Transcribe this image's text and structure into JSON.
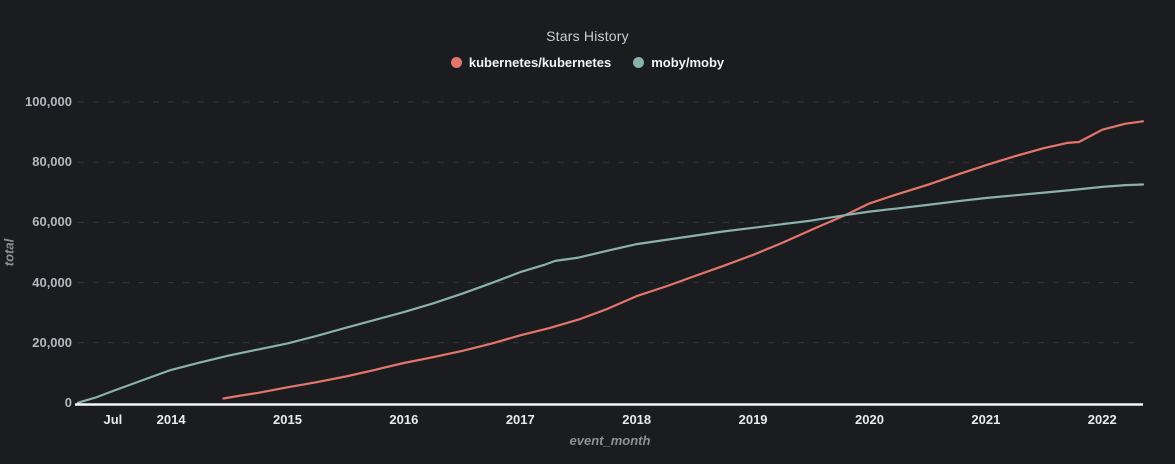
{
  "title": "Stars History",
  "colors": {
    "background": "#1b1c1f",
    "axis_line": "#f5f6f7",
    "grid": "#36373c",
    "y_tick_label": "#b4b8bf",
    "x_tick_label": "#e8eaed",
    "axis_title": "#8d9097",
    "title_text": "#c9cdd4",
    "legend_text": "#f2f3f5",
    "kubernetes_series": "#e4756b",
    "moby_series": "#8ab1ae"
  },
  "legend": {
    "items": [
      {
        "label": "kubernetes/kubernetes",
        "color": "#e4756b"
      },
      {
        "label": "moby/moby",
        "color": "#8ab1ae"
      }
    ]
  },
  "chart_data": {
    "type": "line",
    "title": "Stars History",
    "xlabel": "event_month",
    "ylabel": "total",
    "x_unit": "decimal_year",
    "xlim": [
      2013.2,
      2022.35
    ],
    "ylim": [
      0,
      100000
    ],
    "grid": "horizontal-dashed",
    "legend_position": "top-center",
    "x_ticks": [
      {
        "x": 2013.5,
        "label": "Jul"
      },
      {
        "x": 2014,
        "label": "2014"
      },
      {
        "x": 2015,
        "label": "2015"
      },
      {
        "x": 2016,
        "label": "2016"
      },
      {
        "x": 2017,
        "label": "2017"
      },
      {
        "x": 2018,
        "label": "2018"
      },
      {
        "x": 2019,
        "label": "2019"
      },
      {
        "x": 2020,
        "label": "2020"
      },
      {
        "x": 2021,
        "label": "2021"
      },
      {
        "x": 2022,
        "label": "2022"
      }
    ],
    "y_ticks": [
      {
        "y": 0,
        "label": "0"
      },
      {
        "y": 20000,
        "label": "20,000"
      },
      {
        "y": 40000,
        "label": "40,000"
      },
      {
        "y": 60000,
        "label": "60,000"
      },
      {
        "y": 80000,
        "label": "80,000"
      },
      {
        "y": 100000,
        "label": "100,000"
      }
    ],
    "series": [
      {
        "name": "kubernetes/kubernetes",
        "color": "#e4756b",
        "points": [
          [
            2014.45,
            1500
          ],
          [
            2014.6,
            2500
          ],
          [
            2014.75,
            3400
          ],
          [
            2015.0,
            5200
          ],
          [
            2015.25,
            6900
          ],
          [
            2015.5,
            8800
          ],
          [
            2015.75,
            11000
          ],
          [
            2016.0,
            13300
          ],
          [
            2016.25,
            15200
          ],
          [
            2016.5,
            17300
          ],
          [
            2016.75,
            19700
          ],
          [
            2017.0,
            22500
          ],
          [
            2017.25,
            24900
          ],
          [
            2017.5,
            27700
          ],
          [
            2017.75,
            31300
          ],
          [
            2018.0,
            35500
          ],
          [
            2018.25,
            38700
          ],
          [
            2018.5,
            42200
          ],
          [
            2018.75,
            45600
          ],
          [
            2019.0,
            49200
          ],
          [
            2019.25,
            53200
          ],
          [
            2019.5,
            57500
          ],
          [
            2019.79,
            62400
          ],
          [
            2020.0,
            66300
          ],
          [
            2020.25,
            69500
          ],
          [
            2020.5,
            72500
          ],
          [
            2020.75,
            75800
          ],
          [
            2021.0,
            79000
          ],
          [
            2021.25,
            82000
          ],
          [
            2021.5,
            84700
          ],
          [
            2021.7,
            86400
          ],
          [
            2021.8,
            86700
          ],
          [
            2022.0,
            90800
          ],
          [
            2022.2,
            92800
          ],
          [
            2022.35,
            93600
          ]
        ]
      },
      {
        "name": "moby/moby",
        "color": "#8ab1ae",
        "points": [
          [
            2013.2,
            100
          ],
          [
            2013.35,
            1800
          ],
          [
            2013.5,
            4000
          ],
          [
            2013.75,
            7500
          ],
          [
            2014.0,
            11000
          ],
          [
            2014.25,
            13500
          ],
          [
            2014.5,
            15800
          ],
          [
            2014.75,
            17800
          ],
          [
            2015.0,
            19800
          ],
          [
            2015.25,
            22300
          ],
          [
            2015.5,
            25000
          ],
          [
            2015.75,
            27600
          ],
          [
            2016.0,
            30200
          ],
          [
            2016.25,
            33100
          ],
          [
            2016.5,
            36300
          ],
          [
            2016.75,
            39800
          ],
          [
            2017.0,
            43500
          ],
          [
            2017.2,
            45800
          ],
          [
            2017.3,
            47200
          ],
          [
            2017.5,
            48300
          ],
          [
            2017.75,
            50600
          ],
          [
            2018.0,
            52800
          ],
          [
            2018.25,
            54200
          ],
          [
            2018.5,
            55600
          ],
          [
            2018.75,
            57000
          ],
          [
            2019.0,
            58200
          ],
          [
            2019.25,
            59400
          ],
          [
            2019.5,
            60600
          ],
          [
            2019.79,
            62400
          ],
          [
            2020.0,
            63600
          ],
          [
            2020.25,
            64700
          ],
          [
            2020.5,
            65800
          ],
          [
            2020.75,
            67000
          ],
          [
            2021.0,
            68100
          ],
          [
            2021.25,
            69000
          ],
          [
            2021.5,
            69900
          ],
          [
            2021.75,
            70800
          ],
          [
            2022.0,
            71800
          ],
          [
            2022.2,
            72400
          ],
          [
            2022.35,
            72600
          ]
        ]
      }
    ]
  }
}
